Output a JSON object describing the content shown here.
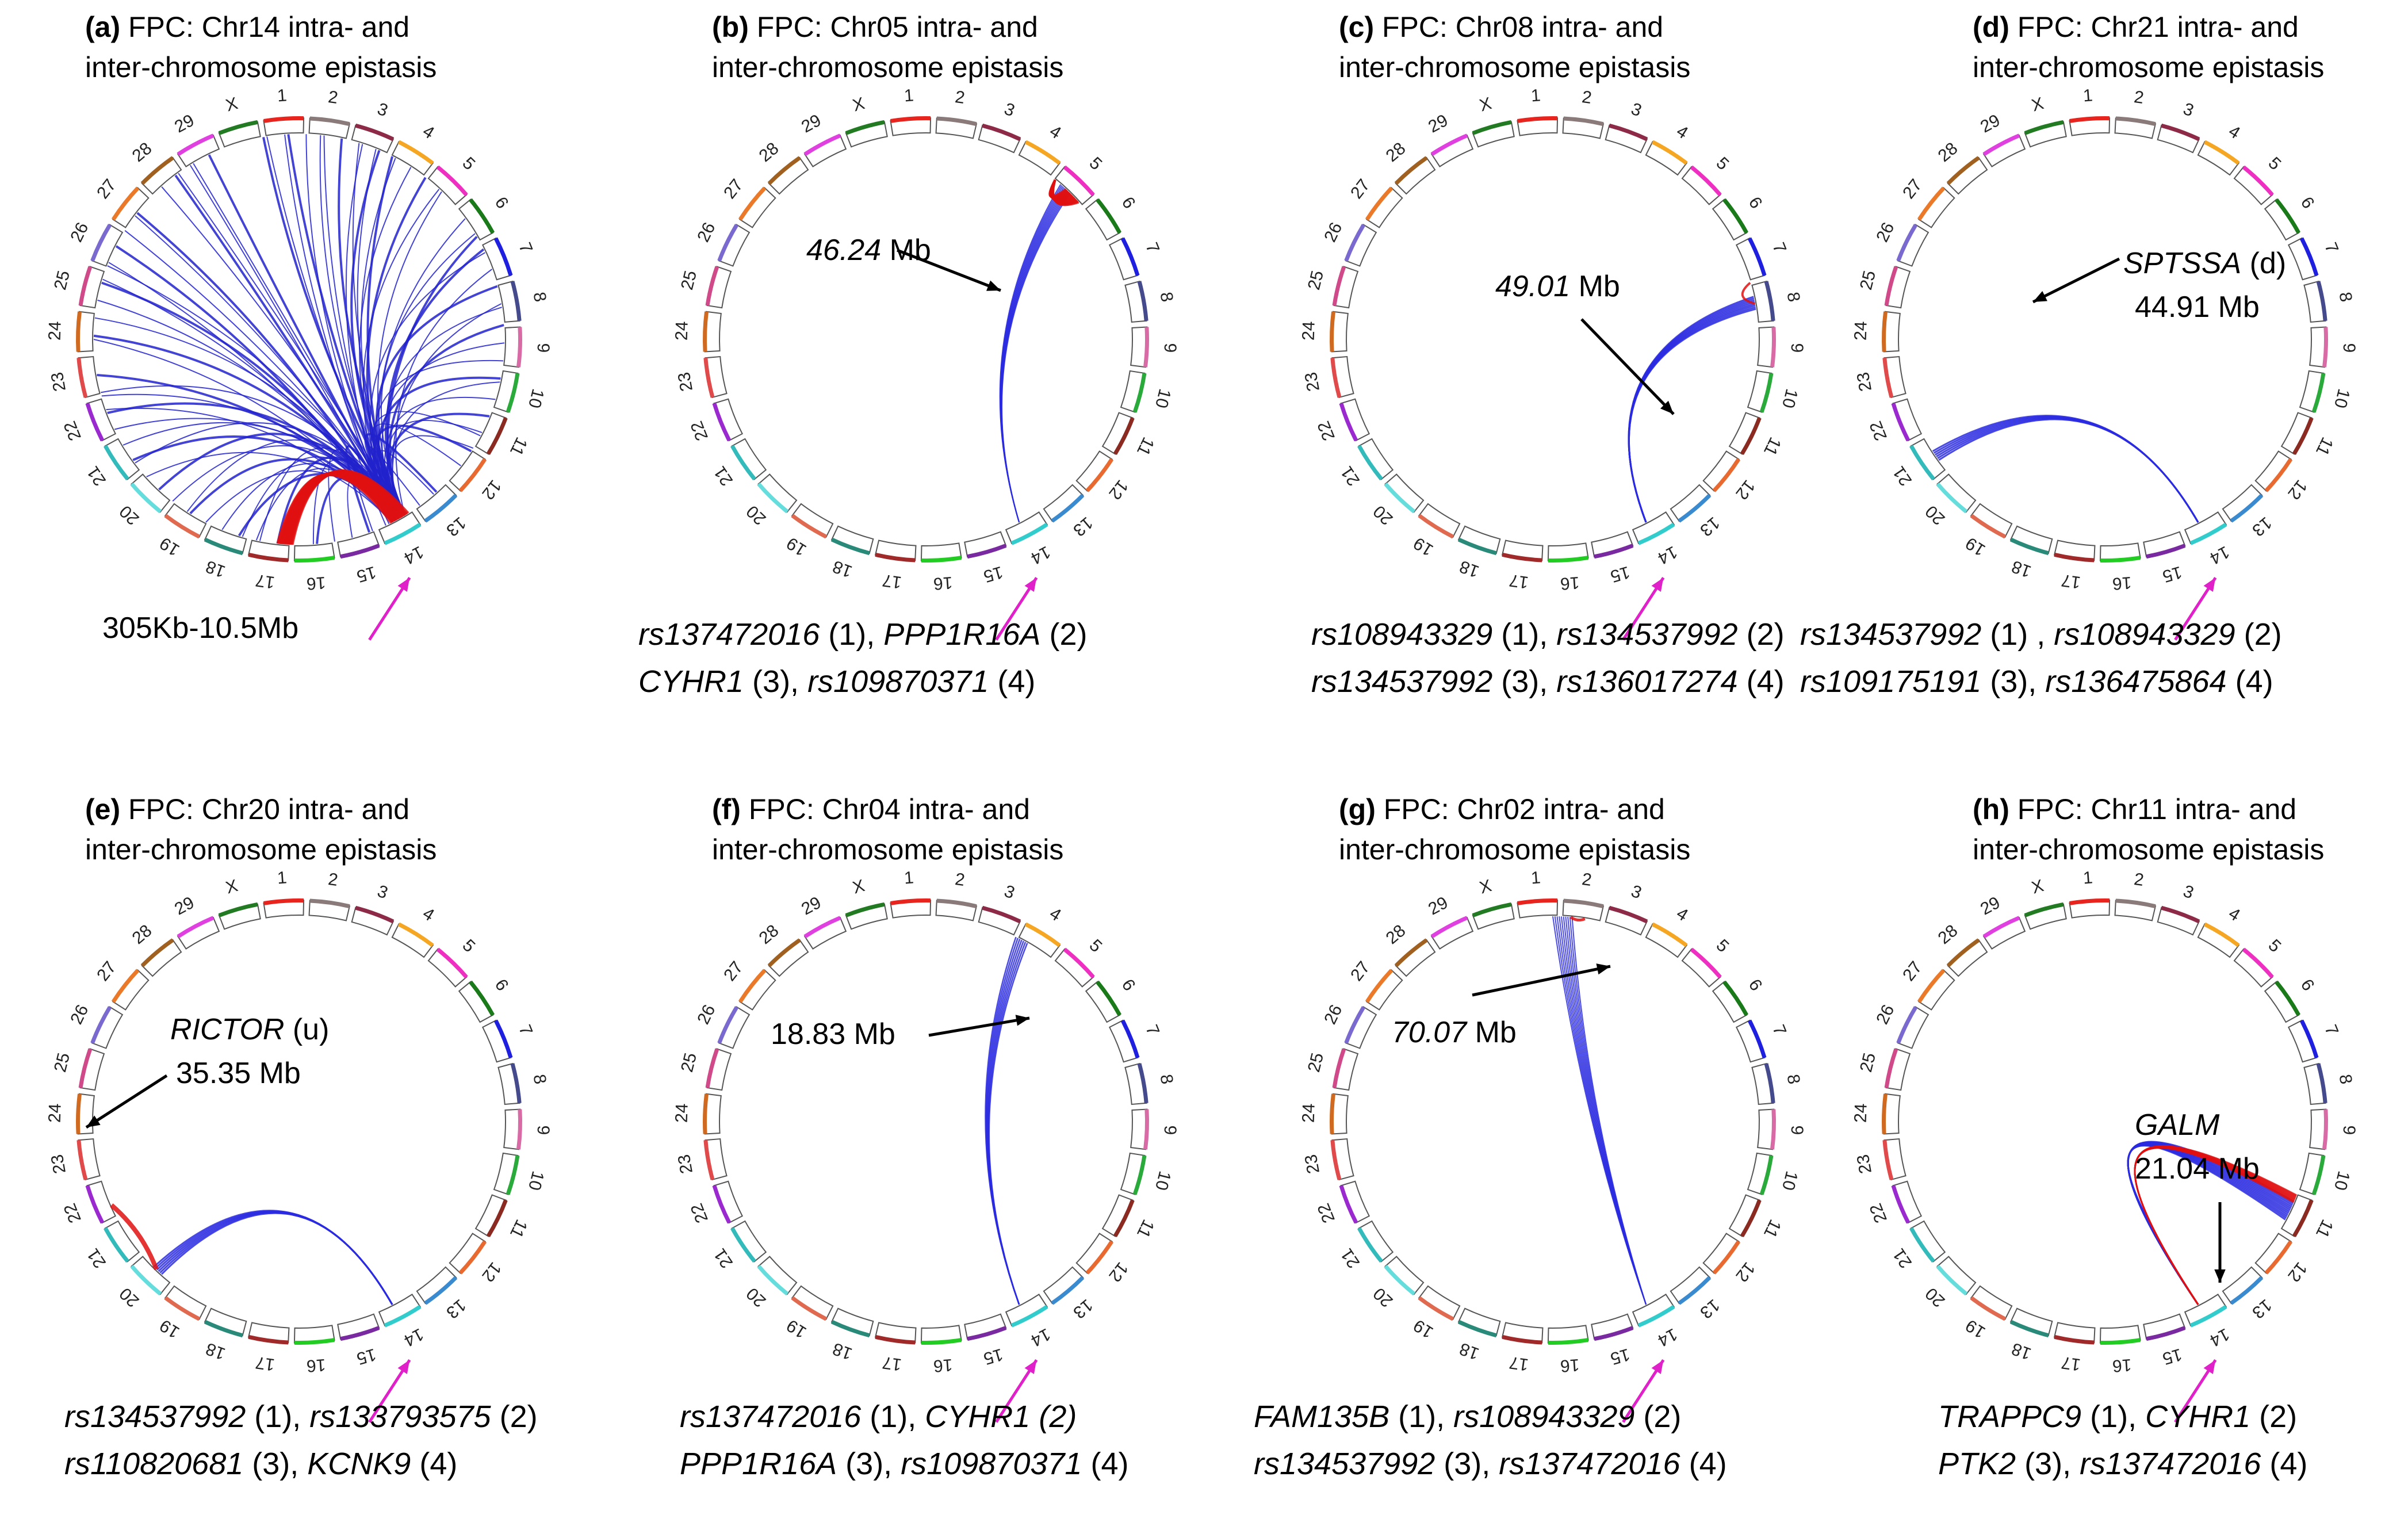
{
  "chromosomes": [
    "1",
    "2",
    "3",
    "4",
    "5",
    "6",
    "7",
    "8",
    "9",
    "10",
    "11",
    "12",
    "13",
    "14",
    "15",
    "16",
    "17",
    "18",
    "19",
    "20",
    "21",
    "22",
    "23",
    "24",
    "25",
    "26",
    "27",
    "28",
    "29",
    "X"
  ],
  "chrom_colors": [
    "#e8241e",
    "#8a7a79",
    "#8c2a47",
    "#f5a623",
    "#ef2fc1",
    "#1a7a1a",
    "#1f1fe0",
    "#444a8c",
    "#d86aa5",
    "#2aaa3a",
    "#8a2a20",
    "#e86a30",
    "#3a8ad0",
    "#33cccc",
    "#7a2aa0",
    "#22cc22",
    "#a02a2a",
    "#2a8a7a",
    "#e06a50",
    "#66dddd",
    "#33bbbb",
    "#9a2ad0",
    "#e04a4a",
    "#d06a20",
    "#d04a8a",
    "#7a6ad0",
    "#ea7a2a",
    "#a06020",
    "#e040e0",
    "#227a22"
  ],
  "panels": [
    {
      "title_bold": "(a)",
      "title_rest": " FPC: Chr14 intra- and",
      "title_line2": "inter-chromosome epistasis",
      "annotation": "305Kb-10.5Mb",
      "caption_line1": [],
      "caption_line2": []
    },
    {
      "title_bold": "(b)",
      "title_rest": " FPC:  Chr05 intra- and",
      "title_line2": "inter-chromosome epistasis",
      "label_italic": "46.24",
      "label_rest": " Mb",
      "label_line2": "",
      "caption_line1": [
        {
          "t": "rs137472016",
          "i": true
        },
        {
          "t": " (1), ",
          "i": false
        },
        {
          "t": "PPP1R16A",
          "i": true
        },
        {
          "t": " (2)",
          "i": false
        }
      ],
      "caption_line2": [
        {
          "t": "CYHR1",
          "i": true
        },
        {
          "t": " (3), ",
          "i": false
        },
        {
          "t": "rs109870371",
          "i": true
        },
        {
          "t": " (4)",
          "i": false
        }
      ]
    },
    {
      "title_bold": "(c)",
      "title_rest": " FPC: Chr08 intra- and",
      "title_line2": "inter-chromosome epistasis",
      "label_italic": "49.01",
      "label_rest": " Mb",
      "label_line2": "",
      "caption_line1": [
        {
          "t": "rs108943329",
          "i": true
        },
        {
          "t": " (1), ",
          "i": false
        },
        {
          "t": "rs134537992",
          "i": true
        },
        {
          "t": " (2)",
          "i": false
        }
      ],
      "caption_line2": [
        {
          "t": "rs134537992",
          "i": true
        },
        {
          "t": " (3), ",
          "i": false
        },
        {
          "t": "rs136017274",
          "i": true
        },
        {
          "t": " (4)",
          "i": false
        }
      ]
    },
    {
      "title_bold": "(d)",
      "title_rest": " FPC: Chr21 intra- and",
      "title_line2": "inter-chromosome epistasis",
      "label_italic": "SPTSSA",
      "label_rest": " (d)",
      "label_line2": "44.91 Mb",
      "caption_line1": [
        {
          "t": "rs134537992",
          "i": true
        },
        {
          "t": " (1) , ",
          "i": false
        },
        {
          "t": "rs108943329",
          "i": true
        },
        {
          "t": " (2)",
          "i": false
        }
      ],
      "caption_line2": [
        {
          "t": "rs109175191",
          "i": true
        },
        {
          "t": " (3), ",
          "i": false
        },
        {
          "t": "rs136475864",
          "i": true
        },
        {
          "t": " (4)",
          "i": false
        }
      ]
    },
    {
      "title_bold": "(e)",
      "title_rest": " FPC:  Chr20 intra- and",
      "title_line2": "inter-chromosome epistasis",
      "label_italic": "RICTOR",
      "label_rest": " (u)",
      "label_line2": "35.35 Mb",
      "caption_line1": [
        {
          "t": "rs134537992",
          "i": true
        },
        {
          "t": " (1), ",
          "i": false
        },
        {
          "t": "rs133793575",
          "i": true
        },
        {
          "t": " (2)",
          "i": false
        }
      ],
      "caption_line2": [
        {
          "t": "rs110820681",
          "i": true
        },
        {
          "t": " (3), ",
          "i": false
        },
        {
          "t": "KCNK9",
          "i": true
        },
        {
          "t": " (4)",
          "i": false
        }
      ]
    },
    {
      "title_bold": "(f)",
      "title_rest": " FPC:  Chr04 intra- and",
      "title_line2": "inter-chromosome epistasis",
      "label_italic": "",
      "label_rest": "18.83 Mb",
      "label_line2": "",
      "caption_line1": [
        {
          "t": "rs137472016",
          "i": true
        },
        {
          "t": " (1), ",
          "i": false
        },
        {
          "t": "CYHR1 (2)",
          "i": true
        }
      ],
      "caption_line2": [
        {
          "t": "PPP1R16A",
          "i": true
        },
        {
          "t": " (3), ",
          "i": false
        },
        {
          "t": "rs109870371",
          "i": true
        },
        {
          "t": " (4)",
          "i": false
        }
      ]
    },
    {
      "title_bold": "(g)",
      "title_rest": " FPC:  Chr02 intra- and",
      "title_line2": "inter-chromosome epistasis",
      "label_italic": "70.07",
      "label_rest": " Mb",
      "label_line2": "",
      "caption_line1": [
        {
          "t": "FAM135B",
          "i": true
        },
        {
          "t": " (1), ",
          "i": false
        },
        {
          "t": "rs108943329",
          "i": true
        },
        {
          "t": " (2)",
          "i": false
        }
      ],
      "caption_line2": [
        {
          "t": "rs134537992",
          "i": true
        },
        {
          "t": " (3), ",
          "i": false
        },
        {
          "t": "rs137472016",
          "i": true
        },
        {
          "t": " (4)",
          "i": false
        }
      ]
    },
    {
      "title_bold": "(h)",
      "title_rest": " FPC:  Chr11 intra- and",
      "title_line2": "inter-chromosome epistasis",
      "label_italic": "GALM",
      "label_rest": "",
      "label_line2": "21.04 Mb",
      "caption_line1": [
        {
          "t": "TRAPPC9",
          "i": true
        },
        {
          "t": " (1), ",
          "i": false
        },
        {
          "t": "CYHR1",
          "i": true
        },
        {
          "t": " (2)",
          "i": false
        }
      ],
      "caption_line2": [
        {
          "t": "PTK2",
          "i": true
        },
        {
          "t": " (3), ",
          "i": false
        },
        {
          "t": "rs137472016",
          "i": true
        },
        {
          "t": " (4)",
          "i": false
        }
      ]
    }
  ]
}
